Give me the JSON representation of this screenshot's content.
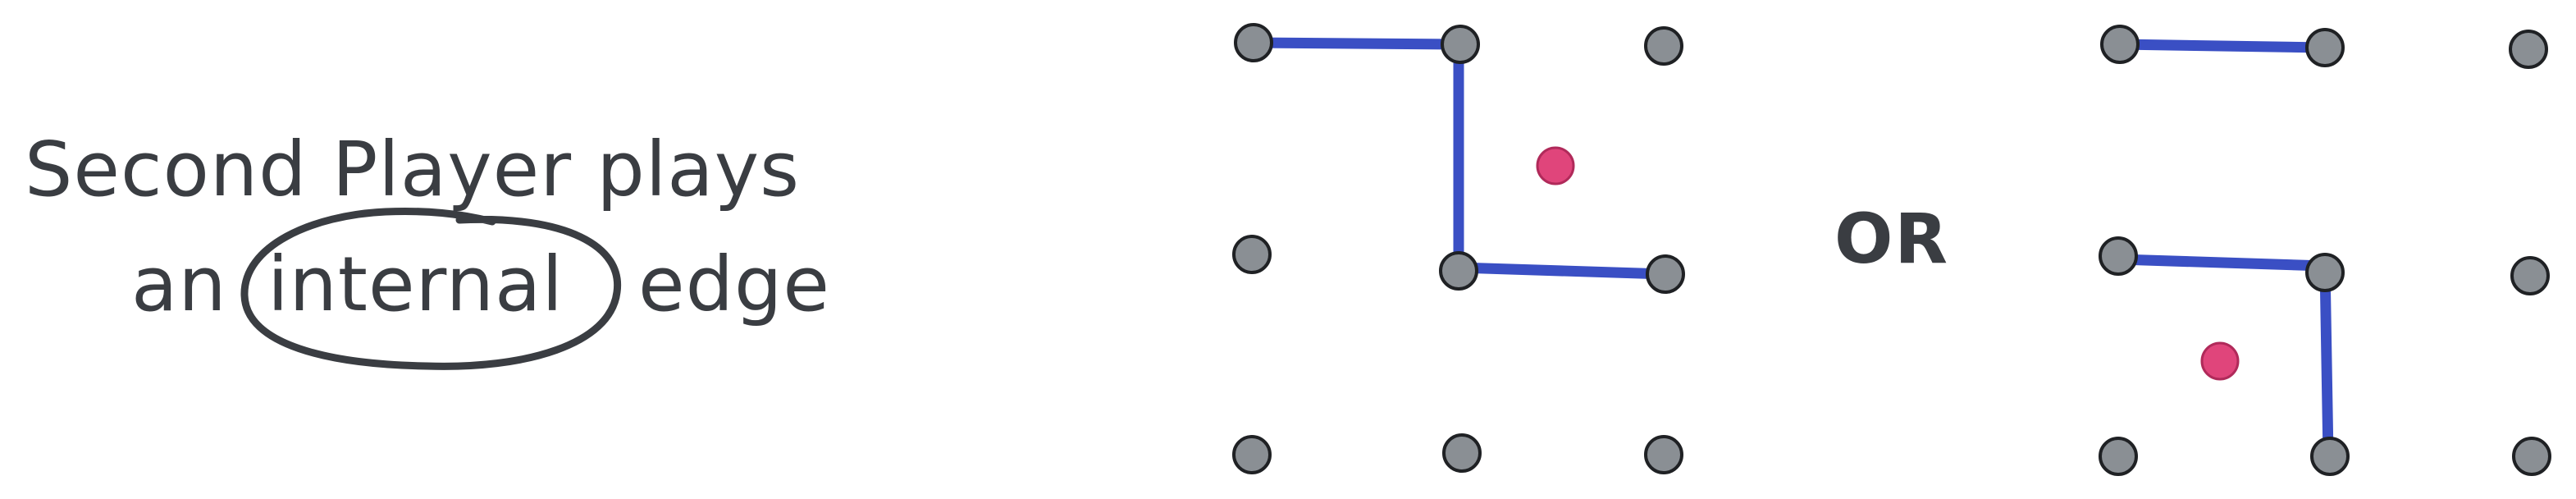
{
  "caption": {
    "line1": "Second Player plays",
    "line2_pre": "an",
    "line2_circled": "internal",
    "line2_post": "edge"
  },
  "separator_label": "OR",
  "colors": {
    "dot_fill": "#8a8f94",
    "dot_stroke": "#1f2124",
    "edge": "#3a4fc4",
    "marker": "#e0457b",
    "ink": "#3a3d42"
  },
  "boards": [
    {
      "name": "left-board",
      "dots": "3x3 grid",
      "edges": [
        "top-left to top-middle",
        "top-middle to center",
        "center to center-right"
      ],
      "marker": "upper-right cell"
    },
    {
      "name": "right-board",
      "dots": "3x3 grid",
      "edges": [
        "top-left to top-middle",
        "center-left to center",
        "center to bottom-middle"
      ],
      "marker": "lower-left cell"
    }
  ]
}
